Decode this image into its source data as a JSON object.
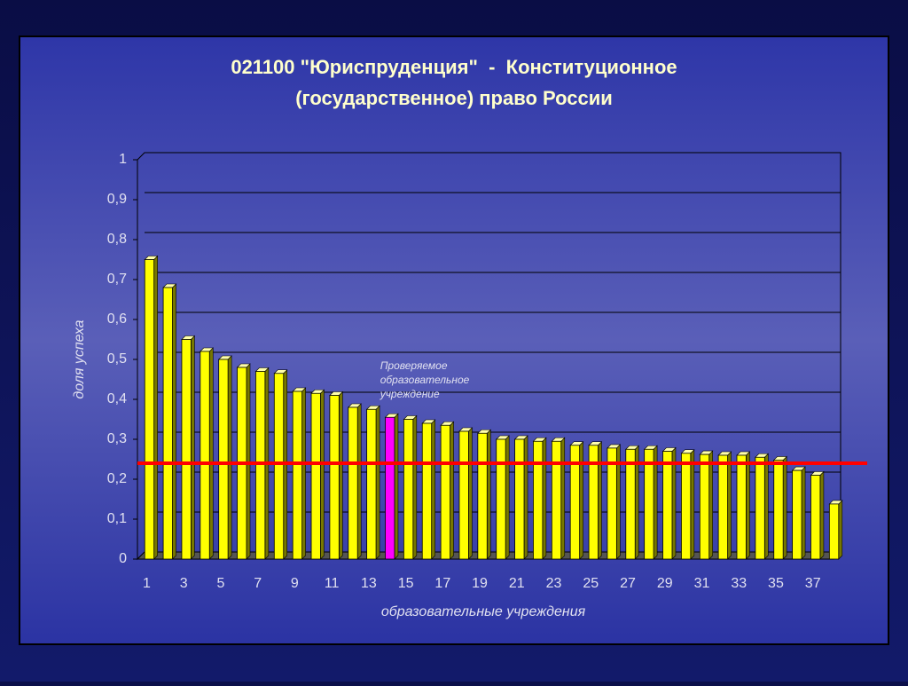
{
  "chart_data": {
    "type": "bar",
    "title": "021100 \"Юриспруденция\"  -  Конституционное",
    "subtitle": "(государственное) право России",
    "x_label": "образовательные учреждения",
    "y_label": "доля успеха",
    "annotation": "Проверяемое образовательное учреждение",
    "categories": [
      1,
      null,
      3,
      null,
      5,
      null,
      7,
      null,
      9,
      null,
      11,
      null,
      13,
      null,
      15,
      null,
      17,
      null,
      19,
      null,
      21,
      null,
      23,
      null,
      25,
      null,
      27,
      null,
      29,
      null,
      31,
      null,
      33,
      null,
      35,
      null,
      37,
      null
    ],
    "values": [
      0.75,
      0.68,
      0.55,
      0.52,
      0.5,
      0.48,
      0.47,
      0.465,
      0.42,
      0.415,
      0.41,
      0.38,
      0.375,
      0.355,
      0.35,
      0.34,
      0.335,
      0.32,
      0.315,
      0.3,
      0.3,
      0.295,
      0.295,
      0.285,
      0.285,
      0.278,
      0.275,
      0.275,
      0.27,
      0.265,
      0.262,
      0.26,
      0.26,
      0.255,
      0.248,
      0.222,
      0.21,
      0.138
    ],
    "color": "#ffff00",
    "highlight_color": "#ff00ff",
    "highlight_category": 14,
    "reference_line": 0.24,
    "reference_color": "#ff0000",
    "ylim": [
      0,
      1
    ],
    "yticks": [
      0,
      {
        "value": 0.1,
        "label": "0,1"
      },
      {
        "value": 0.2,
        "label": "0,2"
      },
      {
        "value": 0.3,
        "label": "0,3"
      },
      {
        "value": 0.4,
        "label": "0,4"
      },
      {
        "value": 0.5,
        "label": "0,5"
      },
      {
        "value": 0.6,
        "label": "0,6"
      },
      {
        "value": 0.7,
        "label": "0,7"
      },
      {
        "value": 0.8,
        "label": "0,8"
      },
      {
        "value": 0.9,
        "label": "0,9"
      },
      1
    ],
    "grid": true
  }
}
